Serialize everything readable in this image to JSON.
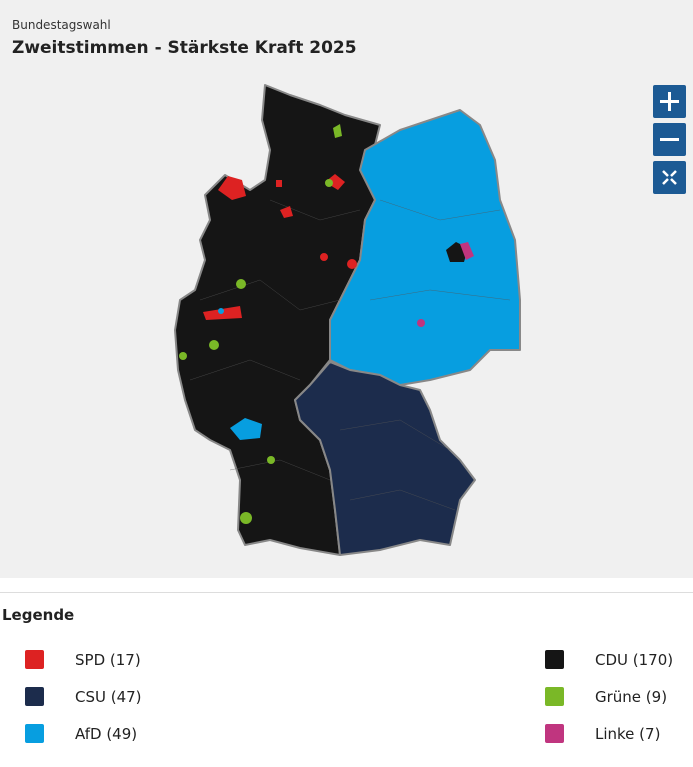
{
  "header": {
    "overline": "Bundestagswahl",
    "title": "Zweitstimmen - Stärkste Kraft 2025"
  },
  "legend": {
    "title": "Legende",
    "items": [
      {
        "label": "SPD (17)",
        "color": "#dd2222"
      },
      {
        "label": "CSU (47)",
        "color": "#1c2c4c"
      },
      {
        "label": "AfD (49)",
        "color": "#079ee0"
      },
      {
        "label": "CDU (170)",
        "color": "#151515"
      },
      {
        "label": "Grüne (9)",
        "color": "#7ab827"
      },
      {
        "label": "Linke (7)",
        "color": "#c0357f"
      }
    ]
  }
}
